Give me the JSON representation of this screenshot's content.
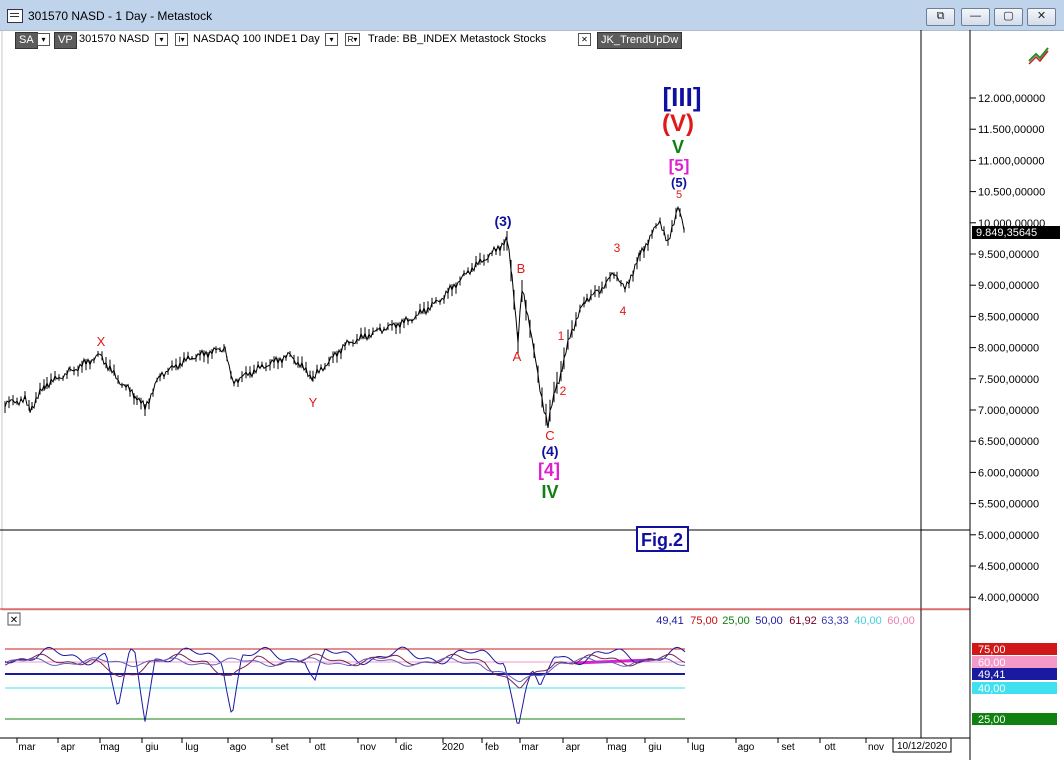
{
  "window": {
    "title": "301570 NASD - 1 Day - Metastock",
    "buttons": [
      "⧉",
      "—",
      "▢",
      "✕"
    ]
  },
  "toolbar": {
    "sa": "SA",
    "vp": "VP",
    "security": "301570 NASD",
    "index_flag": "I▾",
    "index_name": "NASDAQ 100 INDE",
    "period": "1 Day",
    "r_flag": "R▾",
    "trade": "Trade: BB_INDEX  Metastock  Stocks",
    "close_x": "✕",
    "expert": "JK_TrendUpDw"
  },
  "price_axis": {
    "labels": [
      "12.000,00000",
      "11.500,00000",
      "11.000,00000",
      "10.500,00000",
      "10.000,00000",
      "9.500,00000",
      "9.000,00000",
      "8.500,00000",
      "8.000,00000",
      "7.500,00000",
      "7.000,00000",
      "6.500,00000",
      "6.000,00000",
      "5.500,00000",
      "5.000,00000",
      "4.500,00000",
      "4.000,00000"
    ],
    "current": "9.849,35645"
  },
  "wave_labels": {
    "III_bracket": "[III]",
    "V_paren": "(V)",
    "V": "V",
    "five_bracket": "[5]",
    "five_paren": "(5)",
    "five": "5",
    "three_paren": "(3)",
    "B": "B",
    "A": "A",
    "X": "X",
    "Y": "Y",
    "one": "1",
    "two": "2",
    "three": "3",
    "four": "4",
    "C": "C",
    "four_paren": "(4)",
    "four_bracket": "[4]",
    "IV": "IV",
    "fig": "Fig.2"
  },
  "indicator": {
    "close_x": "✕",
    "values": [
      {
        "text": "49,41",
        "color": "#1a1aa0"
      },
      {
        "text": "75,00",
        "color": "#c01010"
      },
      {
        "text": "25,00",
        "color": "#108010"
      },
      {
        "text": "50,00",
        "color": "#1a1aa0"
      },
      {
        "text": "61,92",
        "color": "#700020"
      },
      {
        "text": "63,33",
        "color": "#3a3ab0"
      },
      {
        "text": "40,00",
        "color": "#40d0e0"
      },
      {
        "text": "60,00",
        "color": "#f080b0"
      }
    ],
    "axis_tags": [
      {
        "text": "75,00",
        "bg": "#d01818"
      },
      {
        "text": "60,00",
        "bg": "#f59ac8"
      },
      {
        "text": "49,41",
        "bg": "#1a1aa0"
      },
      {
        "text": "40,00",
        "bg": "#40e0f0"
      },
      {
        "text": "25,00",
        "bg": "#108010"
      }
    ]
  },
  "time_axis": {
    "labels": [
      "mar",
      "apr",
      "mag",
      "giu",
      "lug",
      "ago",
      "set",
      "ott",
      "nov",
      "dic",
      "2020",
      "feb",
      "mar",
      "apr",
      "mag",
      "giu",
      "lug",
      "ago",
      "set",
      "ott",
      "nov"
    ],
    "cursor_date": "10/12/2020"
  },
  "colors": {
    "red": "#e01818",
    "blue": "#1010a0",
    "magenta": "#e020d0",
    "green": "#108010"
  }
}
